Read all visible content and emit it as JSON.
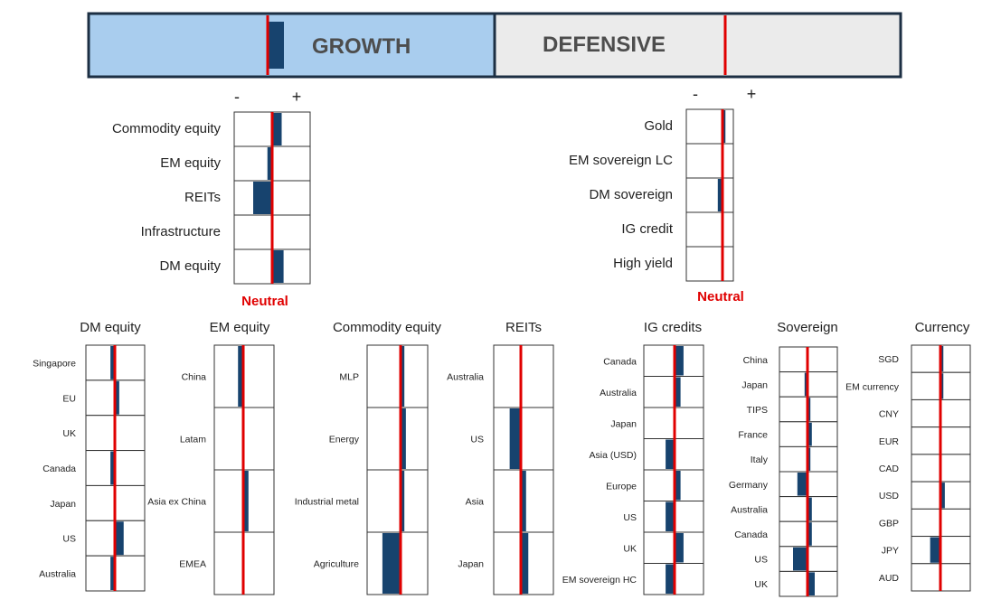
{
  "colors": {
    "bar": "#17436e",
    "neutral": "#e00000",
    "growth_bg": "#a9cdee",
    "defensive_bg": "#ebebeb",
    "border": "#333333",
    "banner_border": "#1c2f43"
  },
  "banner": {
    "growth": {
      "label": "GROWTH",
      "bar_value": 0.6
    },
    "defensive": {
      "label": "DEFENSIVE"
    }
  },
  "signs": {
    "minus": "-",
    "plus": "+"
  },
  "neutral_label": "Neutral",
  "chart_data": [
    {
      "type": "bar",
      "orientation": "horizontal",
      "panel": "growth",
      "categories": [
        "Commodity equity",
        "EM equity",
        "REITs",
        "Infrastructure",
        "DM equity"
      ],
      "values": [
        0.5,
        -0.25,
        -1,
        0,
        0.6
      ],
      "xlim": [
        -2,
        2
      ]
    },
    {
      "type": "bar",
      "orientation": "horizontal",
      "panel": "defensive",
      "categories": [
        "Gold",
        "EM sovereign LC",
        "DM sovereign",
        "IG credit",
        "High yield"
      ],
      "values": [
        0.25,
        0.1,
        -0.4,
        0,
        0.1
      ],
      "xlim": [
        -2,
        2
      ]
    },
    {
      "type": "bar",
      "orientation": "horizontal",
      "title": "DM equity",
      "categories": [
        "Singapore",
        "EU",
        "UK",
        "Canada",
        "Japan",
        "US",
        "Australia"
      ],
      "values": [
        -0.3,
        0.3,
        0,
        -0.3,
        0.05,
        0.6,
        -0.3
      ],
      "xlim": [
        -2,
        2
      ]
    },
    {
      "type": "bar",
      "orientation": "horizontal",
      "title": "EM equity",
      "categories": [
        "China",
        "Latam",
        "Asia ex China",
        "EMEA"
      ],
      "values": [
        -0.35,
        0,
        0.35,
        0
      ],
      "xlim": [
        -2,
        2
      ]
    },
    {
      "type": "bar",
      "orientation": "horizontal",
      "title": "Commodity equity",
      "categories": [
        "MLP",
        "Energy",
        "Industrial metal",
        "Agriculture"
      ],
      "values": [
        0.25,
        0.35,
        0.25,
        -1.2
      ],
      "xlim": [
        -2,
        2
      ]
    },
    {
      "type": "bar",
      "orientation": "horizontal",
      "title": "REITs",
      "categories": [
        "Australia",
        "US",
        "Asia",
        "Japan"
      ],
      "values": [
        0.05,
        -0.75,
        0.35,
        0.5
      ],
      "xlim": [
        -2,
        2
      ]
    },
    {
      "type": "bar",
      "orientation": "horizontal",
      "title": "IG credits",
      "categories": [
        "Canada",
        "Australia",
        "Japan",
        "Asia (USD)",
        "Europe",
        "US",
        "UK",
        "EM sovereign HC"
      ],
      "values": [
        0.6,
        0.4,
        0,
        -0.6,
        0.4,
        -0.6,
        0.6,
        -0.6
      ],
      "xlim": [
        -2,
        2
      ]
    },
    {
      "type": "bar",
      "orientation": "horizontal",
      "title": "Sovereign",
      "categories": [
        "China",
        "Japan",
        "TIPS",
        "France",
        "Italy",
        "Germany",
        "Australia",
        "Canada",
        "US",
        "UK"
      ],
      "values": [
        0,
        -0.2,
        0.2,
        0.3,
        0.2,
        -0.7,
        0.3,
        0.3,
        -1,
        0.5
      ],
      "xlim": [
        -2,
        2
      ]
    },
    {
      "type": "bar",
      "orientation": "horizontal",
      "title": "Currency",
      "categories": [
        "SGD",
        "EM currency",
        "CNY",
        "EUR",
        "CAD",
        "USD",
        "GBP",
        "JPY",
        "AUD"
      ],
      "values": [
        0.2,
        0.2,
        0,
        0,
        0,
        0.3,
        0,
        -0.7,
        0
      ],
      "xlim": [
        -2,
        2
      ]
    }
  ]
}
